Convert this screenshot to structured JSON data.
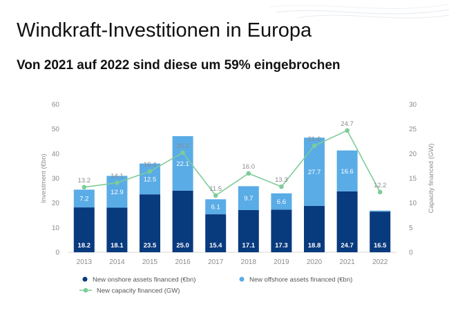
{
  "page": {
    "title": "Windkraft-Investitionen in Europa",
    "subtitle": "Von 2021 auf 2022 sind diese um 59% eingebrochen"
  },
  "colors": {
    "onshore": "#083a7e",
    "offshore": "#5aace6",
    "capacity": "#7dcc98",
    "axis_text": "#8a8a8a"
  },
  "chart_data": {
    "type": "bar",
    "stacked": true,
    "categories": [
      "2013",
      "2014",
      "2015",
      "2016",
      "2017",
      "2018",
      "2019",
      "2020",
      "2021",
      "2022"
    ],
    "series": [
      {
        "name": "New onshore assets financed (€bn)",
        "values": [
          18.2,
          18.1,
          23.5,
          25.0,
          15.4,
          17.1,
          17.3,
          18.8,
          24.7,
          16.5
        ]
      },
      {
        "name": "New offshore assets financed (€bn)",
        "values": [
          7.2,
          12.9,
          12.5,
          22.1,
          6.1,
          9.7,
          6.6,
          27.7,
          16.6,
          0.4
        ]
      }
    ],
    "line_series": {
      "name": "New capacity financed (GW)",
      "axis": "right",
      "values": [
        13.2,
        14.1,
        16.4,
        20.2,
        11.5,
        16.0,
        13.3,
        21.6,
        24.7,
        12.2
      ]
    },
    "ylabel": "Investment (€bn)",
    "ylabel_right": "Capacity financed (GW)",
    "ylim": [
      0,
      60
    ],
    "ylim_right": [
      0,
      30
    ],
    "yticks": [
      0,
      10,
      20,
      30,
      40,
      50,
      60
    ],
    "yticks_right": [
      0,
      5,
      10,
      15,
      20,
      25,
      30
    ],
    "legend_position": "bottom"
  }
}
